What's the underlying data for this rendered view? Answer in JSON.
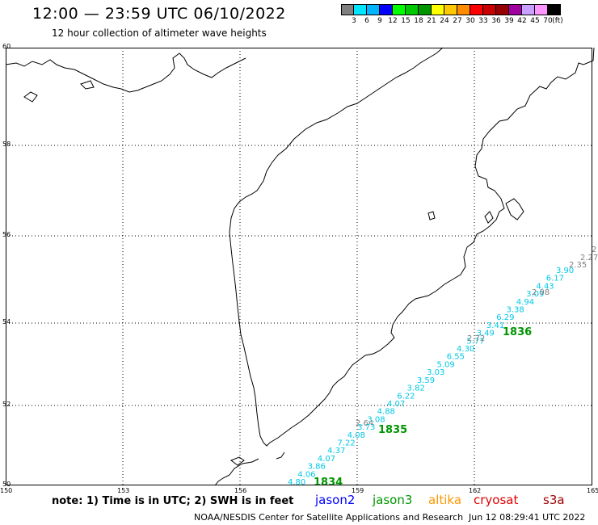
{
  "header": {
    "title": "12:00 — 23:59 UTC 06/10/2022",
    "subtitle": "12 hour collection of altimeter wave heights"
  },
  "colorbar": {
    "colors": [
      "#808080",
      "#00e5ff",
      "#00b4ff",
      "#0000ff",
      "#00ff00",
      "#00c800",
      "#009600",
      "#ffff00",
      "#ffc800",
      "#ff8c00",
      "#ff0000",
      "#c80000",
      "#960000",
      "#a000a0",
      "#c8a0ff",
      "#ff96ff",
      "#000000"
    ],
    "labels": [
      "3",
      "6",
      "9",
      "12",
      "15",
      "18",
      "21",
      "24",
      "27",
      "30",
      "33",
      "36",
      "39",
      "42",
      "45",
      "70",
      "(ft)"
    ]
  },
  "axes": {
    "lat_labels": [
      "60",
      "58",
      "56",
      "54",
      "52",
      "50"
    ],
    "lon_labels": [
      "150",
      "153",
      "156",
      "159",
      "162",
      "165"
    ]
  },
  "track": {
    "cyan": [
      "4.80",
      "4.06",
      "3.86",
      "4.07",
      "4.37",
      "7.22",
      "4.08",
      "3.73",
      "3.08",
      "4.88",
      "4.07",
      "6.22",
      "3.82",
      "3.59",
      "3.03",
      "5.09",
      "6.55",
      "4.30",
      "5.77",
      "3.49",
      "3.41",
      "6.29",
      "3.38",
      "4.94",
      "3.09",
      "4.43",
      "6.17",
      "3.90"
    ],
    "gray": [
      "2.64",
      "2.72",
      "2.98",
      "2.35",
      "2.27",
      "2"
    ],
    "passes": [
      "1834",
      "1835",
      "1836"
    ]
  },
  "footer": {
    "note": "note: 1) Time is in UTC; 2) SWH is in feet",
    "satellites": [
      {
        "name": "jason2",
        "color": "#0000ff"
      },
      {
        "name": "jason3",
        "color": "#009600"
      },
      {
        "name": "altika",
        "color": "#ff9600"
      },
      {
        "name": "cryosat",
        "color": "#e00000"
      },
      {
        "name": "s3a",
        "color": "#a00000"
      }
    ],
    "credit": "NOAA/NESDIS Center for Satellite Applications and Research",
    "timestamp": "Jun 12 08:29:41 UTC 2022"
  }
}
